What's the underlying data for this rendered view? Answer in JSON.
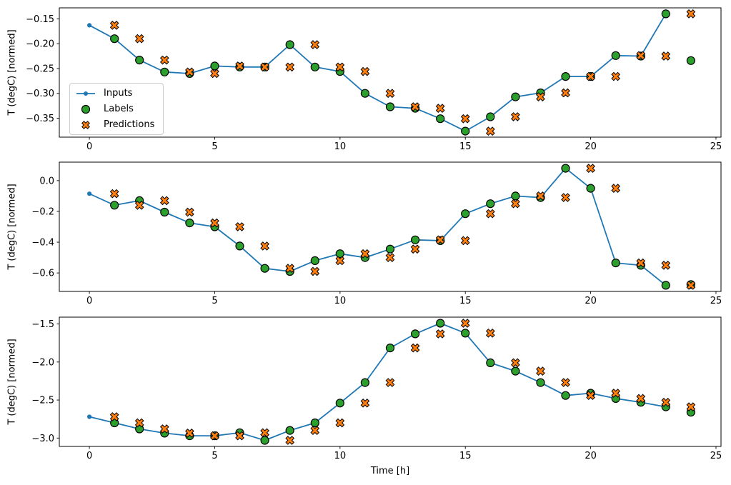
{
  "chart_meta": {
    "xlabel": "Time [h]",
    "ylabel": "T (degC) [normed]",
    "background": "#ffffff"
  },
  "colors": {
    "inputs": "#1f77b4",
    "labels": "#2ca02c",
    "predictions": "#ff7f0e",
    "marker_edge": "#000000",
    "spine": "#000000",
    "legend_border": "#cccccc"
  },
  "legend": {
    "items": [
      {
        "label": "Inputs",
        "marker": "line-with-dot",
        "color": "#1f77b4"
      },
      {
        "label": "Labels",
        "marker": "filled-circle",
        "color": "#2ca02c"
      },
      {
        "label": "Predictions",
        "marker": "filled-x",
        "color": "#ff7f0e"
      }
    ],
    "position": "upper-left-of-first-subplot"
  },
  "chart_data": [
    {
      "type": "line+scatter",
      "title": "",
      "ylabel": "T (degC) [normed]",
      "xlim": [
        -1.2,
        25.2
      ],
      "ylim": [
        -0.388,
        -0.128
      ],
      "xticks": [
        0,
        5,
        10,
        15,
        20,
        25
      ],
      "xtick_labels": [
        "0",
        "5",
        "10",
        "15",
        "20",
        "25"
      ],
      "yticks": [
        -0.15,
        -0.2,
        -0.25,
        -0.3,
        -0.35
      ],
      "ytick_labels": [
        "−0.15",
        "−0.20",
        "−0.25",
        "−0.30",
        "−0.35"
      ],
      "grid": false,
      "has_legend": true,
      "series": [
        {
          "name": "Inputs",
          "style": "line+dot",
          "color": "#1f77b4",
          "x": [
            0,
            1,
            2,
            3,
            4,
            5,
            6,
            7,
            8,
            9,
            10,
            11,
            12,
            13,
            14,
            15,
            16,
            17,
            18,
            19,
            20,
            21,
            22,
            23
          ],
          "y": [
            -0.163,
            -0.19,
            -0.233,
            -0.257,
            -0.26,
            -0.245,
            -0.247,
            -0.247,
            -0.202,
            -0.247,
            -0.256,
            -0.3,
            -0.327,
            -0.33,
            -0.351,
            -0.376,
            -0.347,
            -0.307,
            -0.299,
            -0.266,
            -0.266,
            -0.224,
            -0.225,
            -0.14
          ]
        },
        {
          "name": "Labels",
          "style": "scatter-circle",
          "color": "#2ca02c",
          "x": [
            1,
            2,
            3,
            4,
            5,
            6,
            7,
            8,
            9,
            10,
            11,
            12,
            13,
            14,
            15,
            16,
            17,
            18,
            19,
            20,
            21,
            22,
            23,
            24
          ],
          "y": [
            -0.19,
            -0.233,
            -0.257,
            -0.26,
            -0.245,
            -0.247,
            -0.247,
            -0.202,
            -0.247,
            -0.256,
            -0.3,
            -0.327,
            -0.33,
            -0.351,
            -0.376,
            -0.347,
            -0.307,
            -0.299,
            -0.266,
            -0.266,
            -0.224,
            -0.225,
            -0.14,
            -0.234
          ]
        },
        {
          "name": "Predictions",
          "style": "scatter-x",
          "color": "#ff7f0e",
          "x": [
            1,
            2,
            3,
            4,
            5,
            6,
            7,
            8,
            9,
            10,
            11,
            12,
            13,
            14,
            15,
            16,
            17,
            18,
            19,
            20,
            21,
            22,
            23,
            24
          ],
          "y": [
            -0.163,
            -0.19,
            -0.233,
            -0.257,
            -0.26,
            -0.245,
            -0.247,
            -0.247,
            -0.202,
            -0.247,
            -0.256,
            -0.3,
            -0.327,
            -0.33,
            -0.351,
            -0.376,
            -0.347,
            -0.307,
            -0.299,
            -0.266,
            -0.266,
            -0.224,
            -0.225,
            -0.14
          ]
        }
      ]
    },
    {
      "type": "line+scatter",
      "title": "",
      "ylabel": "T (degC) [normed]",
      "xlim": [
        -1.2,
        25.2
      ],
      "ylim": [
        -0.72,
        0.12
      ],
      "xticks": [
        0,
        5,
        10,
        15,
        20,
        25
      ],
      "xtick_labels": [
        "0",
        "5",
        "10",
        "15",
        "20",
        "25"
      ],
      "yticks": [
        0.0,
        -0.2,
        -0.4,
        -0.6
      ],
      "ytick_labels": [
        "0.0",
        "−0.2",
        "−0.4",
        "−0.6"
      ],
      "grid": false,
      "has_legend": false,
      "series": [
        {
          "name": "Inputs",
          "style": "line+dot",
          "color": "#1f77b4",
          "x": [
            0,
            1,
            2,
            3,
            4,
            5,
            6,
            7,
            8,
            9,
            10,
            11,
            12,
            13,
            14,
            15,
            16,
            17,
            18,
            19,
            20,
            21,
            22,
            23
          ],
          "y": [
            -0.085,
            -0.16,
            -0.13,
            -0.205,
            -0.275,
            -0.3,
            -0.425,
            -0.57,
            -0.59,
            -0.52,
            -0.475,
            -0.5,
            -0.445,
            -0.385,
            -0.39,
            -0.215,
            -0.15,
            -0.1,
            -0.11,
            0.08,
            -0.05,
            -0.535,
            -0.55,
            -0.68
          ]
        },
        {
          "name": "Labels",
          "style": "scatter-circle",
          "color": "#2ca02c",
          "x": [
            1,
            2,
            3,
            4,
            5,
            6,
            7,
            8,
            9,
            10,
            11,
            12,
            13,
            14,
            15,
            16,
            17,
            18,
            19,
            20,
            21,
            22,
            23,
            24
          ],
          "y": [
            -0.16,
            -0.13,
            -0.205,
            -0.275,
            -0.3,
            -0.425,
            -0.57,
            -0.59,
            -0.52,
            -0.475,
            -0.5,
            -0.445,
            -0.385,
            -0.39,
            -0.215,
            -0.15,
            -0.1,
            -0.11,
            0.08,
            -0.05,
            -0.535,
            -0.55,
            -0.68,
            -0.675
          ]
        },
        {
          "name": "Predictions",
          "style": "scatter-x",
          "color": "#ff7f0e",
          "x": [
            1,
            2,
            3,
            4,
            5,
            6,
            7,
            8,
            9,
            10,
            11,
            12,
            13,
            14,
            15,
            16,
            17,
            18,
            19,
            20,
            21,
            22,
            23,
            24
          ],
          "y": [
            -0.085,
            -0.16,
            -0.13,
            -0.205,
            -0.275,
            -0.3,
            -0.425,
            -0.57,
            -0.59,
            -0.52,
            -0.475,
            -0.5,
            -0.445,
            -0.385,
            -0.39,
            -0.215,
            -0.15,
            -0.1,
            -0.11,
            0.08,
            -0.05,
            -0.535,
            -0.55,
            -0.68
          ]
        }
      ]
    },
    {
      "type": "line+scatter",
      "title": "",
      "ylabel": "T (degC) [normed]",
      "xlabel": "Time [h]",
      "xlim": [
        -1.2,
        25.2
      ],
      "ylim": [
        -3.11,
        -1.41
      ],
      "xticks": [
        0,
        5,
        10,
        15,
        20,
        25
      ],
      "xtick_labels": [
        "0",
        "5",
        "10",
        "15",
        "20",
        "25"
      ],
      "yticks": [
        -1.5,
        -2.0,
        -2.5,
        -3.0
      ],
      "ytick_labels": [
        "−1.5",
        "−2.0",
        "−2.5",
        "−3.0"
      ],
      "grid": false,
      "has_legend": false,
      "series": [
        {
          "name": "Inputs",
          "style": "line+dot",
          "color": "#1f77b4",
          "x": [
            0,
            1,
            2,
            3,
            4,
            5,
            6,
            7,
            8,
            9,
            10,
            11,
            12,
            13,
            14,
            15,
            16,
            17,
            18,
            19,
            20,
            21,
            22,
            23
          ],
          "y": [
            -2.72,
            -2.8,
            -2.88,
            -2.935,
            -2.97,
            -2.97,
            -2.93,
            -3.03,
            -2.9,
            -2.8,
            -2.54,
            -2.27,
            -1.815,
            -1.63,
            -1.49,
            -1.62,
            -2.01,
            -2.12,
            -2.27,
            -2.44,
            -2.41,
            -2.48,
            -2.53,
            -2.59
          ]
        },
        {
          "name": "Labels",
          "style": "scatter-circle",
          "color": "#2ca02c",
          "x": [
            1,
            2,
            3,
            4,
            5,
            6,
            7,
            8,
            9,
            10,
            11,
            12,
            13,
            14,
            15,
            16,
            17,
            18,
            19,
            20,
            21,
            22,
            23,
            24
          ],
          "y": [
            -2.8,
            -2.88,
            -2.935,
            -2.97,
            -2.97,
            -2.93,
            -3.03,
            -2.9,
            -2.8,
            -2.54,
            -2.27,
            -1.815,
            -1.63,
            -1.49,
            -1.62,
            -2.01,
            -2.12,
            -2.27,
            -2.44,
            -2.41,
            -2.48,
            -2.53,
            -2.59,
            -2.66
          ]
        },
        {
          "name": "Predictions",
          "style": "scatter-x",
          "color": "#ff7f0e",
          "x": [
            1,
            2,
            3,
            4,
            5,
            6,
            7,
            8,
            9,
            10,
            11,
            12,
            13,
            14,
            15,
            16,
            17,
            18,
            19,
            20,
            21,
            22,
            23,
            24
          ],
          "y": [
            -2.72,
            -2.8,
            -2.88,
            -2.935,
            -2.97,
            -2.97,
            -2.93,
            -3.03,
            -2.9,
            -2.8,
            -2.54,
            -2.27,
            -1.815,
            -1.63,
            -1.49,
            -1.62,
            -2.01,
            -2.12,
            -2.27,
            -2.44,
            -2.41,
            -2.48,
            -2.53,
            -2.59
          ]
        }
      ]
    }
  ]
}
